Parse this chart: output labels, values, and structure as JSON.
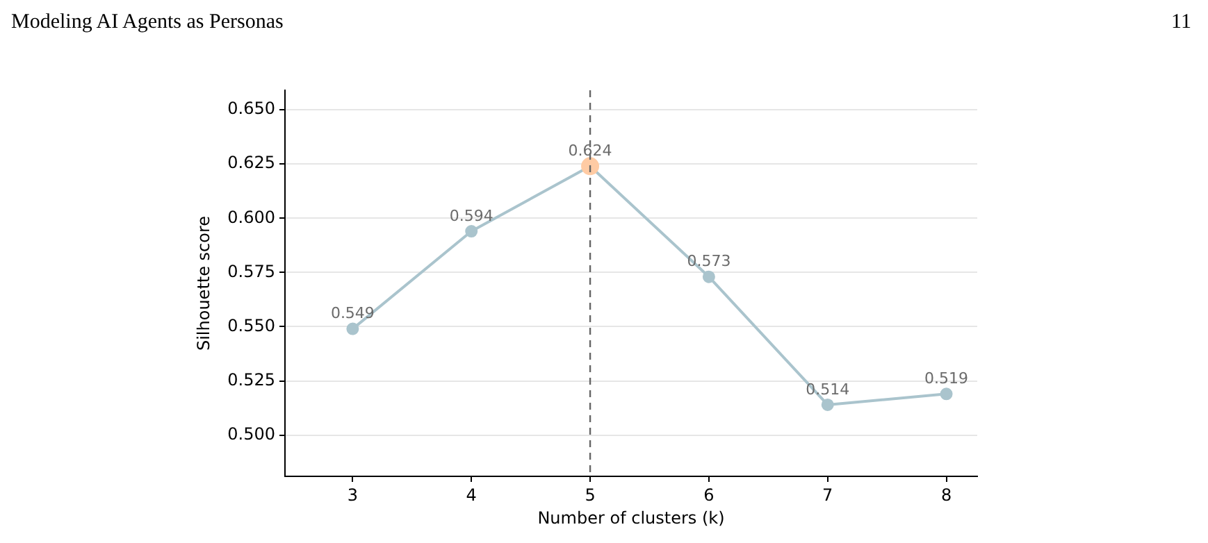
{
  "chart_data": {
    "type": "line",
    "xlabel": "Number of clusters (k)",
    "ylabel": "Silhouette score",
    "annotations": [
      "Modeling AI Agents as Personas",
      "11"
    ],
    "x": [
      3,
      4,
      5,
      6,
      7,
      8
    ],
    "series": [
      {
        "color": "#aac4cd",
        "colors": [
          "#aac4cd",
          "#aac4cd",
          "#ffcba4",
          "#aac4cd",
          "#aac4cd",
          "#aac4cd"
        ],
        "values": [
          0.549,
          0.594,
          0.624,
          0.573,
          0.514,
          0.519
        ]
      }
    ],
    "xlim": [
      2.43,
      8.26
    ],
    "xticks": [
      3,
      4,
      5,
      6,
      7,
      8
    ],
    "ylim": [
      0.481,
      0.659
    ],
    "yticks": [
      {
        "value": 0.5,
        "label": "0.500"
      },
      {
        "value": 0.525,
        "label": "0.525"
      },
      {
        "value": 0.55,
        "label": "0.550"
      },
      {
        "value": 0.575,
        "label": "0.575"
      },
      {
        "value": 0.6,
        "label": "0.600"
      },
      {
        "value": 0.625,
        "label": "0.625"
      },
      {
        "value": 0.65,
        "label": "0.650"
      }
    ],
    "grid": "y",
    "marker": "circle",
    "line_style": "solid",
    "data_labels": true,
    "legend": false,
    "ref_lines": [
      {
        "axis": "x",
        "value": 5,
        "color": "#666666",
        "line_style": "dashed"
      }
    ]
  }
}
